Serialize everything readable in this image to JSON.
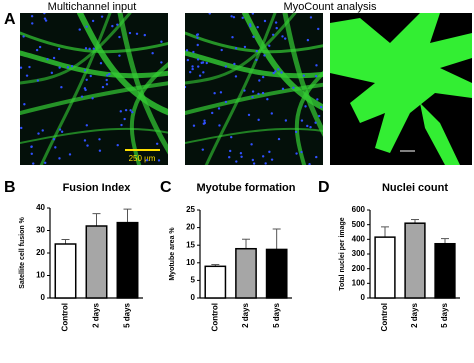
{
  "panels": {
    "a": "A",
    "b": "B",
    "c": "C",
    "d": "D"
  },
  "images": {
    "left_title": "Multichannel input",
    "right_title": "MyoCount analysis",
    "scale_bar": "250 µm"
  },
  "chart_data": [
    {
      "type": "bar",
      "title": "Fusion Index",
      "ylabel": "Satellite cell fusion %",
      "categories": [
        "Control",
        "2 days",
        "5 days"
      ],
      "values": [
        24,
        32,
        33.5
      ],
      "errors": [
        2,
        5.5,
        6
      ],
      "colors": [
        "#ffffff",
        "#a6a6a6",
        "#000000"
      ],
      "ylim": [
        0,
        40
      ],
      "yticks": [
        0,
        10,
        20,
        30,
        40
      ]
    },
    {
      "type": "bar",
      "title": "Myotube formation",
      "ylabel": "Myotube area %",
      "categories": [
        "Control",
        "2 days",
        "5 days"
      ],
      "values": [
        9,
        14,
        13.8
      ],
      "errors": [
        0.5,
        2.7,
        5.8
      ],
      "colors": [
        "#ffffff",
        "#a6a6a6",
        "#000000"
      ],
      "ylim": [
        0,
        25
      ],
      "yticks": [
        0,
        5,
        10,
        15,
        20,
        25
      ]
    },
    {
      "type": "bar",
      "title": "Nuclei count",
      "ylabel": "Total nuclei per image",
      "categories": [
        "Control",
        "2 days",
        "5 days"
      ],
      "values": [
        415,
        510,
        370
      ],
      "errors": [
        70,
        25,
        35
      ],
      "colors": [
        "#ffffff",
        "#a6a6a6",
        "#000000"
      ],
      "ylim": [
        0,
        600
      ],
      "yticks": [
        0,
        100,
        200,
        300,
        400,
        500,
        600
      ]
    }
  ]
}
